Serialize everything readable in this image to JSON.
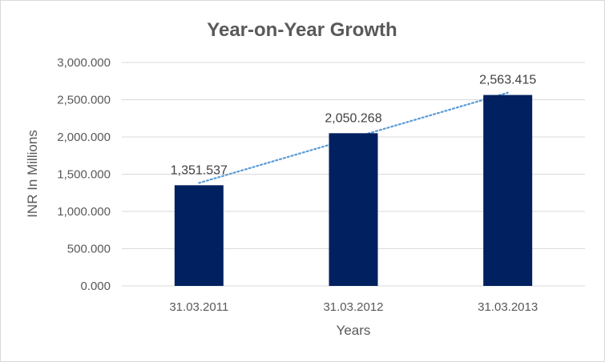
{
  "chart_data": {
    "type": "bar",
    "title": "Year-on-Year Growth",
    "xlabel": "Years",
    "ylabel": "INR In Millions",
    "categories": [
      "31.03.2011",
      "31.03.2012",
      "31.03.2013"
    ],
    "values": [
      1351.537,
      2050.268,
      2563.415
    ],
    "data_labels": [
      "1,351.537",
      "2,050.268",
      "2,563.415"
    ],
    "ylim": [
      0,
      3000
    ],
    "yticks": [
      0,
      500,
      1000,
      1500,
      2000,
      2500,
      3000
    ],
    "ytick_labels": [
      "0.000",
      "500.000",
      "1,000.000",
      "1,500.000",
      "2,000.000",
      "2,500.000",
      "3,000.000"
    ],
    "grid": true,
    "trendline": "linear",
    "colors": {
      "bar": "#002060",
      "trendline": "#5b9bd5",
      "grid": "#d9d9d9",
      "text": "#595959"
    }
  }
}
